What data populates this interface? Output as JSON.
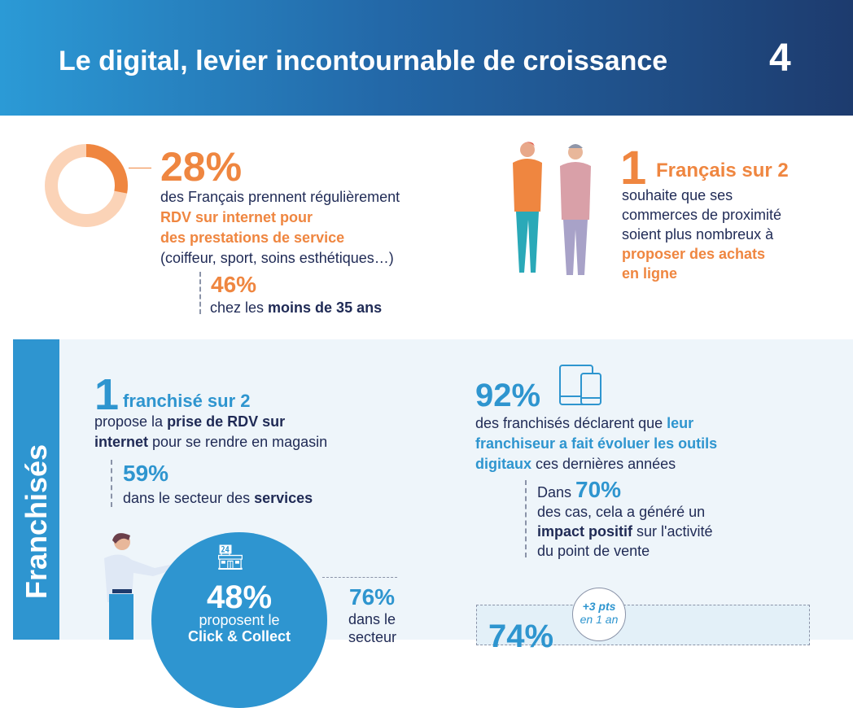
{
  "header": {
    "title": "Le digital, levier incontournable de croissance",
    "page_number": "4"
  },
  "stat1": {
    "value": "28%",
    "line1": "des Français prennent régulièrement",
    "highlight1": "RDV sur internet pour",
    "highlight2": "des prestations de service",
    "line2": "(coiffeur, sport, soins esthétiques…)",
    "sub_value": "46%",
    "sub_text": "chez les ",
    "sub_bold": "moins de 35 ans",
    "donut_percent": 28
  },
  "stat2": {
    "value": "1",
    "value_suffix": "Français sur 2",
    "line1": "souhaite que ses",
    "line2": "commerces de proximité",
    "line3": "soient plus nombreux à",
    "highlight1": "proposer des achats",
    "highlight2": "en ligne"
  },
  "section": {
    "label": "Franchisés"
  },
  "stat3": {
    "value": "1",
    "value_suffix": "franchisé sur 2",
    "t1": "propose la ",
    "b1": "prise de RDV sur",
    "b2": "internet",
    "t2": " pour se rendre en magasin",
    "sub_value": "59%",
    "sub_text": "dans le secteur des ",
    "sub_bold": "services"
  },
  "stat4": {
    "value": "48%",
    "line1": "proposent le",
    "line2": "Click & Collect",
    "side_value": "76%",
    "side_line1": "dans le",
    "side_line2": "secteur"
  },
  "stat5": {
    "value": "92%",
    "t1": "des franchisés déclarent que ",
    "h1": "leur",
    "h2": "franchiseur a fait évoluer les outils",
    "h3": "digitaux",
    "t2": " ces dernières années",
    "sub_prefix": "Dans ",
    "sub_value": "70%",
    "sub_l1": "des cas, cela a généré un",
    "sub_bold": "impact positif",
    "sub_l2": " sur l'activité",
    "sub_l3": "du point de vente"
  },
  "stat6": {
    "value": "74%",
    "badge1": "+3 pts",
    "badge2": "en 1 an"
  },
  "colors": {
    "orange": "#ef8640",
    "blue": "#2e95cf",
    "navy": "#1f2a55"
  }
}
